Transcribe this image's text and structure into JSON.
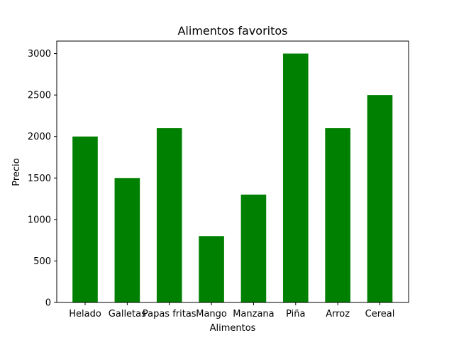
{
  "chart_data": {
    "type": "bar",
    "title": "Alimentos favoritos",
    "xlabel": "Alimentos",
    "ylabel": "Precio",
    "categories": [
      "Helado",
      "Galletas",
      "Papas fritas",
      "Mango",
      "Manzana",
      "Piña",
      "Arroz",
      "Cereal"
    ],
    "values": [
      2000,
      1500,
      2100,
      800,
      1300,
      3000,
      2100,
      2500
    ],
    "ylim": [
      0,
      3150
    ],
    "yticks": [
      0,
      500,
      1000,
      1500,
      2000,
      2500,
      3000
    ],
    "bar_color": "#008000",
    "grid": false,
    "legend": "none"
  }
}
